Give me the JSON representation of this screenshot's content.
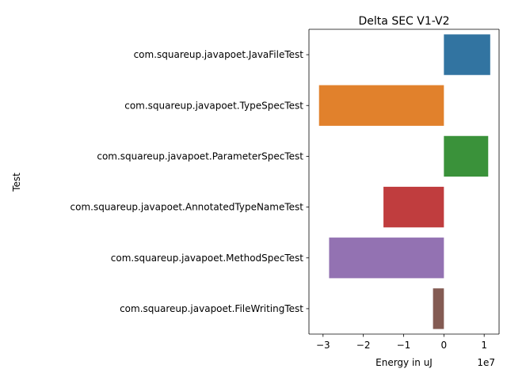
{
  "chart_data": {
    "type": "bar",
    "orientation": "horizontal",
    "title": "Delta SEC V1-V2",
    "xlabel": "Energy in uJ",
    "ylabel": "Test",
    "x_offset_label": "1e7",
    "categories": [
      "com.squareup.javapoet.JavaFileTest",
      "com.squareup.javapoet.TypeSpecTest",
      "com.squareup.javapoet.ParameterSpecTest",
      "com.squareup.javapoet.AnnotatedTypeNameTest",
      "com.squareup.javapoet.MethodSpecTest",
      "com.squareup.javapoet.FileWritingTest"
    ],
    "values": [
      11500000,
      -31000000,
      11000000,
      -15000000,
      -28500000,
      -2700000
    ],
    "colors": [
      "#3274a1",
      "#e1812c",
      "#3a923a",
      "#c03d3e",
      "#9372b2",
      "#845b53"
    ],
    "xlim": [
      -33500000,
      13700000
    ],
    "x_ticks": [
      -30000000,
      -20000000,
      -10000000,
      0,
      10000000
    ],
    "x_tick_labels": [
      "−3",
      "−2",
      "−1",
      "0",
      "1"
    ],
    "grid": false,
    "legend": "none"
  }
}
